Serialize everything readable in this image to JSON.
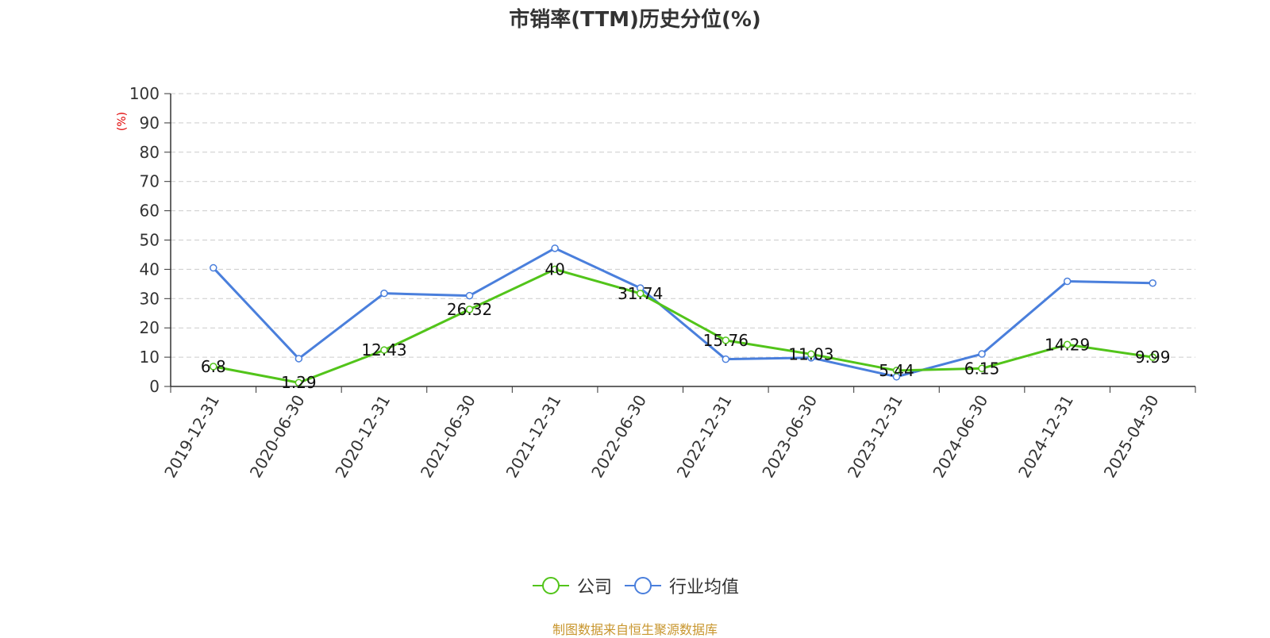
{
  "title": "市销率(TTM)历史分位(%)",
  "source": "制图数据来自恒生聚源数据库",
  "chart_data": {
    "type": "line",
    "title": "市销率(TTM)历史分位(%)",
    "ylabel": "(%)",
    "ylim": [
      0,
      100
    ],
    "yticks": [
      "0",
      "10",
      "20",
      "30",
      "40",
      "50",
      "60",
      "70",
      "80",
      "90",
      "100"
    ],
    "grid": true,
    "legend_position": "bottom",
    "categories": [
      "2019-12-31",
      "2020-06-30",
      "2020-12-31",
      "2021-06-30",
      "2021-12-31",
      "2022-06-30",
      "2022-12-31",
      "2023-06-30",
      "2023-12-31",
      "2024-06-30",
      "2024-12-31",
      "2025-04-30"
    ],
    "series": [
      {
        "name": "公司",
        "color": "#52c41a",
        "values": [
          6.8,
          1.29,
          12.43,
          26.32,
          40,
          31.74,
          15.76,
          11.03,
          5.44,
          6.15,
          14.29,
          9.99
        ],
        "labels": [
          "6.8",
          "1.29",
          "12.43",
          "26.32",
          "40",
          "31.74",
          "15.76",
          "11.03",
          "5.44",
          "6.15",
          "14.29",
          "9.99"
        ]
      },
      {
        "name": "行业均值",
        "color": "#4a7fdc",
        "values": [
          40.5,
          9.5,
          31.8,
          31,
          47.2,
          33.6,
          9.3,
          9.8,
          3.3,
          11.1,
          35.9,
          35.3
        ]
      }
    ]
  },
  "legend": [
    {
      "name": "公司",
      "color": "#52c41a",
      "icon": "circle-line-icon"
    },
    {
      "name": "行业均值",
      "color": "#4a7fdc",
      "icon": "circle-line-icon"
    }
  ]
}
